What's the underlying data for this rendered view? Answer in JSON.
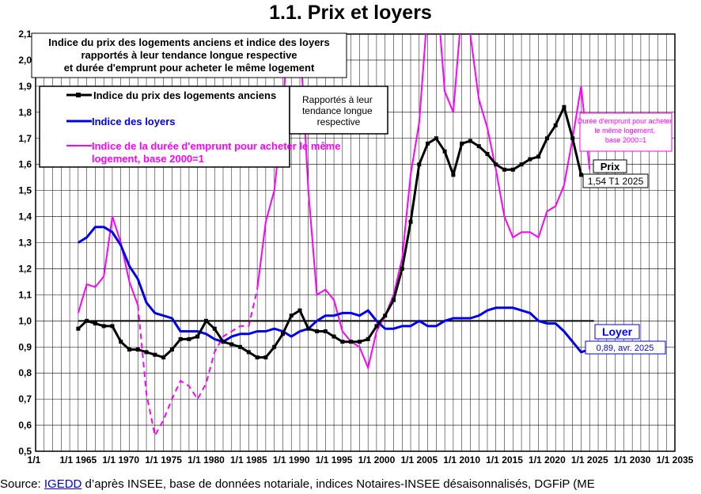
{
  "page": {
    "title": "1.1.     Prix et loyers",
    "source_prefix": "Source: ",
    "source_link": "IGEDD",
    "source_rest": " d’après INSEE, base de données notariale, indices Notaires-INSEE désaisonnalisés, DGFiP (ME"
  },
  "chart_data": {
    "type": "line",
    "title": "Indice du prix des logements anciens et indice des loyers rapportés à leur tendance longue respective et durée d'emprunt pour acheter le même logement",
    "title_lines": [
      "Indice du prix des logements anciens et indice des loyers",
      "rapportés à leur tendance longue respective",
      "et durée d'emprunt pour acheter le même logement"
    ],
    "ylim": [
      0.5,
      2.1
    ],
    "xlim": [
      1960,
      2035
    ],
    "y_ticks": [
      "0,5",
      "0,6",
      "0,7",
      "0,8",
      "0,9",
      "1,0",
      "1,1",
      "1,2",
      "1,3",
      "1,4",
      "1,5",
      "1,6",
      "1,7",
      "1,8",
      "1,9",
      "2,0",
      "2,1"
    ],
    "x_ticks": [
      "1/1 1965",
      "1/1 1970",
      "1/1 1975",
      "1/1 1980",
      "1/1 1985",
      "1/1 1990",
      "1/1 1995",
      "1/1 2000",
      "1/1 2005",
      "1/1 2010",
      "1/1 2015",
      "1/1 2020",
      "1/1 2025",
      "1/1 2030",
      "1/1 2035"
    ],
    "grid": true,
    "reference_line": 1.0,
    "legend": {
      "placement": "top-left",
      "entries": [
        "Indice du prix des logements anciens",
        "Indice des loyers",
        "Indice de la durée d'emprunt pour acheter le même logement, base 2000=1"
      ],
      "note": "Rapportés à leur tendance longue respective"
    },
    "annotations": {
      "prix_label": "Prix",
      "prix_value": "1,54 T1 2025",
      "loyer_label": "Loyer",
      "loyer_value": "0,89, avr. 2025",
      "duree_note": "Durée d'emprunt pour acheter le même logement, base 2000=1"
    },
    "colors": {
      "prix": "#000000",
      "loyers": "#0000ee",
      "duree": "#ff00ff"
    },
    "series": [
      {
        "name": "Indice du prix des logements anciens",
        "x": [
          1965,
          1966,
          1967,
          1968,
          1969,
          1970,
          1971,
          1972,
          1973,
          1974,
          1975,
          1976,
          1977,
          1978,
          1979,
          1980,
          1981,
          1982,
          1983,
          1984,
          1985,
          1986,
          1987,
          1988,
          1989,
          1990,
          1991,
          1992,
          1993,
          1994,
          1995,
          1996,
          1997,
          1998,
          1999,
          2000,
          2001,
          2002,
          2003,
          2004,
          2005,
          2006,
          2007,
          2008,
          2009,
          2010,
          2011,
          2012,
          2013,
          2014,
          2015,
          2016,
          2017,
          2018,
          2019,
          2020,
          2021,
          2022,
          2023,
          2024,
          2025
        ],
        "values": [
          0.97,
          1.0,
          0.99,
          0.98,
          0.98,
          0.92,
          0.89,
          0.89,
          0.88,
          0.87,
          0.86,
          0.89,
          0.93,
          0.93,
          0.94,
          1.0,
          0.97,
          0.92,
          0.91,
          0.9,
          0.88,
          0.86,
          0.86,
          0.9,
          0.95,
          1.02,
          1.04,
          0.97,
          0.96,
          0.96,
          0.94,
          0.92,
          0.92,
          0.92,
          0.93,
          0.98,
          1.02,
          1.08,
          1.2,
          1.38,
          1.6,
          1.68,
          1.7,
          1.65,
          1.56,
          1.68,
          1.69,
          1.67,
          1.64,
          1.6,
          1.58,
          1.58,
          1.6,
          1.62,
          1.63,
          1.7,
          1.75,
          1.82,
          1.7,
          1.56,
          1.54
        ]
      },
      {
        "name": "Indice des loyers",
        "x": [
          1965,
          1966,
          1967,
          1968,
          1969,
          1970,
          1971,
          1972,
          1973,
          1974,
          1975,
          1976,
          1977,
          1978,
          1979,
          1980,
          1981,
          1982,
          1983,
          1984,
          1985,
          1986,
          1987,
          1988,
          1989,
          1990,
          1991,
          1992,
          1993,
          1994,
          1995,
          1996,
          1997,
          1998,
          1999,
          2000,
          2001,
          2002,
          2003,
          2004,
          2005,
          2006,
          2007,
          2008,
          2009,
          2010,
          2011,
          2012,
          2013,
          2014,
          2015,
          2016,
          2017,
          2018,
          2019,
          2020,
          2021,
          2022,
          2023,
          2024,
          2025
        ],
        "values": [
          1.3,
          1.32,
          1.36,
          1.36,
          1.34,
          1.29,
          1.21,
          1.16,
          1.07,
          1.03,
          1.02,
          1.01,
          0.96,
          0.96,
          0.96,
          0.95,
          0.93,
          0.92,
          0.94,
          0.95,
          0.95,
          0.96,
          0.96,
          0.97,
          0.96,
          0.94,
          0.96,
          0.97,
          1.0,
          1.02,
          1.02,
          1.03,
          1.03,
          1.02,
          1.04,
          1.0,
          0.97,
          0.97,
          0.98,
          0.98,
          1.0,
          0.98,
          0.98,
          1.0,
          1.01,
          1.01,
          1.01,
          1.02,
          1.04,
          1.05,
          1.05,
          1.05,
          1.04,
          1.03,
          1.0,
          0.99,
          0.99,
          0.96,
          0.92,
          0.88,
          0.89
        ]
      },
      {
        "name": "Indice de la durée d'emprunt pour acheter le même logement, base 2000=1",
        "x": [
          1965,
          1966,
          1967,
          1968,
          1969,
          1970,
          1971,
          1972,
          1973,
          1974,
          1975,
          1976,
          1977,
          1978,
          1979,
          1980,
          1981,
          1982,
          1983,
          1984,
          1985,
          1986,
          1987,
          1988,
          1989,
          1990,
          1991,
          1992,
          1993,
          1994,
          1995,
          1996,
          1997,
          1998,
          1999,
          2000,
          2001,
          2002,
          2003,
          2004,
          2005,
          2006,
          2007,
          2008,
          2009,
          2010,
          2011,
          2012,
          2013,
          2014,
          2015,
          2016,
          2017,
          2018,
          2019,
          2020,
          2021,
          2022,
          2023,
          2024,
          2025
        ],
        "values": [
          1.03,
          1.14,
          1.13,
          1.17,
          1.4,
          1.3,
          1.15,
          1.06,
          0.72,
          0.56,
          0.62,
          0.7,
          0.77,
          0.75,
          0.7,
          0.76,
          0.88,
          0.94,
          0.96,
          0.98,
          0.98,
          1.12,
          1.38,
          1.5,
          1.8,
          2.3,
          2.1,
          1.5,
          1.1,
          1.12,
          1.08,
          0.96,
          0.92,
          0.9,
          0.82,
          0.96,
          1.02,
          1.1,
          1.24,
          1.56,
          1.76,
          2.2,
          2.3,
          1.88,
          1.8,
          2.2,
          2.1,
          1.85,
          1.74,
          1.58,
          1.4,
          1.32,
          1.34,
          1.34,
          1.32,
          1.42,
          1.44,
          1.52,
          1.7,
          1.9,
          1.58
        ],
        "dashed_ranges": [
          [
            1972,
            1986
          ]
        ]
      }
    ]
  }
}
